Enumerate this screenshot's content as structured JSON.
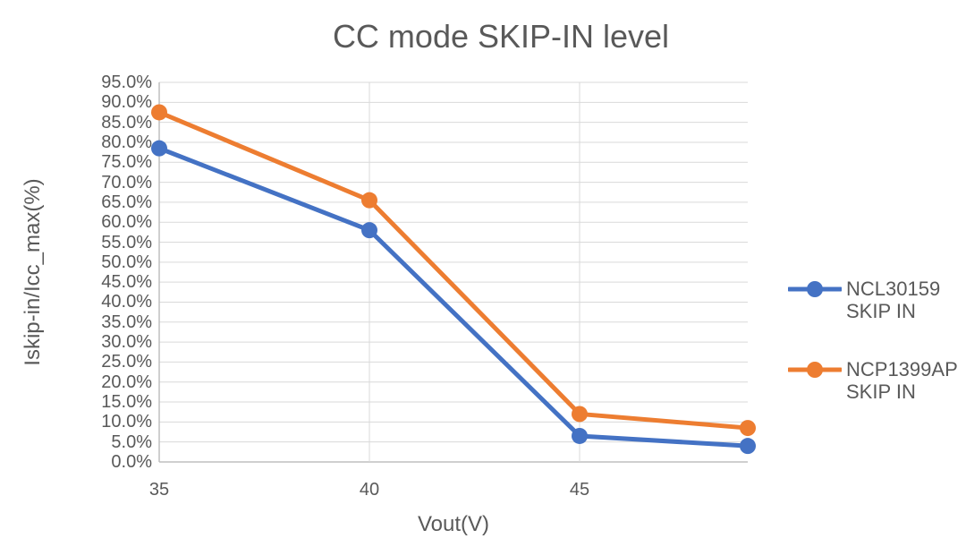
{
  "page": {
    "background": "#FFFFFF"
  },
  "chart_data": {
    "type": "line",
    "title": "CC mode SKIP-IN level",
    "xlabel": "Vout(V)",
    "ylabel": "Iskip-in/Icc_max(%)",
    "x": [
      35,
      40,
      45,
      49
    ],
    "series": [
      {
        "name": "NCL30159 SKIP IN",
        "color": "#4472C4",
        "values": [
          78.5,
          58.0,
          6.5,
          4.0
        ]
      },
      {
        "name": "NCP1399AP SKIP IN",
        "color": "#ED7D31",
        "values": [
          87.5,
          65.5,
          12.0,
          8.5
        ]
      }
    ],
    "xlim": [
      35,
      49
    ],
    "ylim": [
      0,
      95
    ],
    "x_ticks": [
      35,
      40,
      45
    ],
    "x_tick_labels": [
      "35",
      "40",
      "45"
    ],
    "y_ticks": [
      95,
      90,
      85,
      80,
      75,
      70,
      65,
      60,
      55,
      50,
      45,
      40,
      35,
      30,
      25,
      20,
      15,
      10,
      5,
      0
    ],
    "y_tick_labels": [
      "95.0%",
      "90.0%",
      "85.0%",
      "80.0%",
      "75.0%",
      "70.0%",
      "65.0%",
      "60.0%",
      "55.0%",
      "50.0%",
      "45.0%",
      "40.0%",
      "35.0%",
      "30.0%",
      "25.0%",
      "20.0%",
      "15.0%",
      "10.0%",
      "5.0%",
      "0.0%"
    ],
    "grid": true,
    "legend_position": "right",
    "colors": {
      "gridline": "#D9D9D9",
      "axis_line": "#BFBFBF",
      "text": "#595959"
    }
  }
}
